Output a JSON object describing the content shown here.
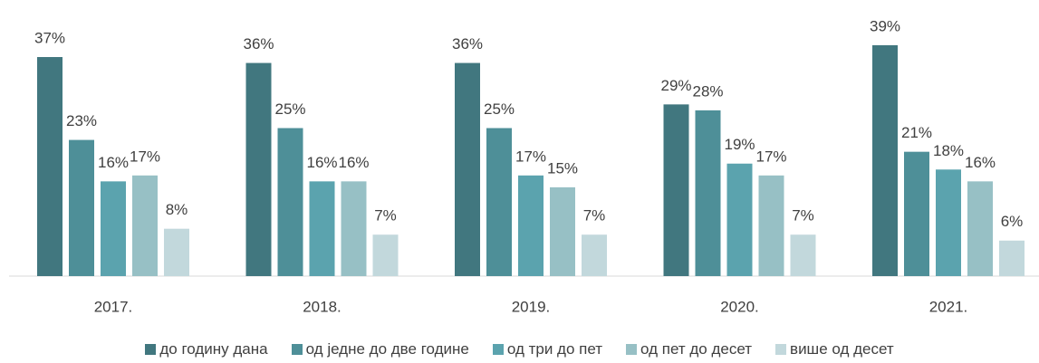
{
  "chart_data": {
    "type": "bar",
    "categories": [
      "2017.",
      "2018.",
      "2019.",
      "2020.",
      "2021."
    ],
    "series": [
      {
        "name": "до годину дана",
        "color": "#41777f",
        "values": [
          37,
          36,
          36,
          29,
          39
        ],
        "value_labels": [
          "37%",
          "36%",
          "36%",
          "29%",
          "39%"
        ]
      },
      {
        "name": "од једне до две године",
        "color": "#4e8f98",
        "values": [
          23,
          25,
          25,
          28,
          21
        ],
        "value_labels": [
          "23%",
          "25%",
          "25%",
          "28%",
          "21%"
        ]
      },
      {
        "name": "од три до пет",
        "color": "#5ba3ae",
        "values": [
          16,
          16,
          17,
          19,
          18
        ],
        "value_labels": [
          "16%",
          "16%",
          "17%",
          "19%",
          "18%"
        ]
      },
      {
        "name": "од пет до десет",
        "color": "#97c0c5",
        "values": [
          17,
          16,
          15,
          17,
          16
        ],
        "value_labels": [
          "17%",
          "16%",
          "15%",
          "17%",
          "16%"
        ]
      },
      {
        "name": "више од десет",
        "color": "#c2d8dc",
        "values": [
          8,
          7,
          7,
          7,
          6
        ],
        "value_labels": [
          "8%",
          "7%",
          "7%",
          "7%",
          "6%"
        ]
      }
    ],
    "legend": "bottom"
  }
}
